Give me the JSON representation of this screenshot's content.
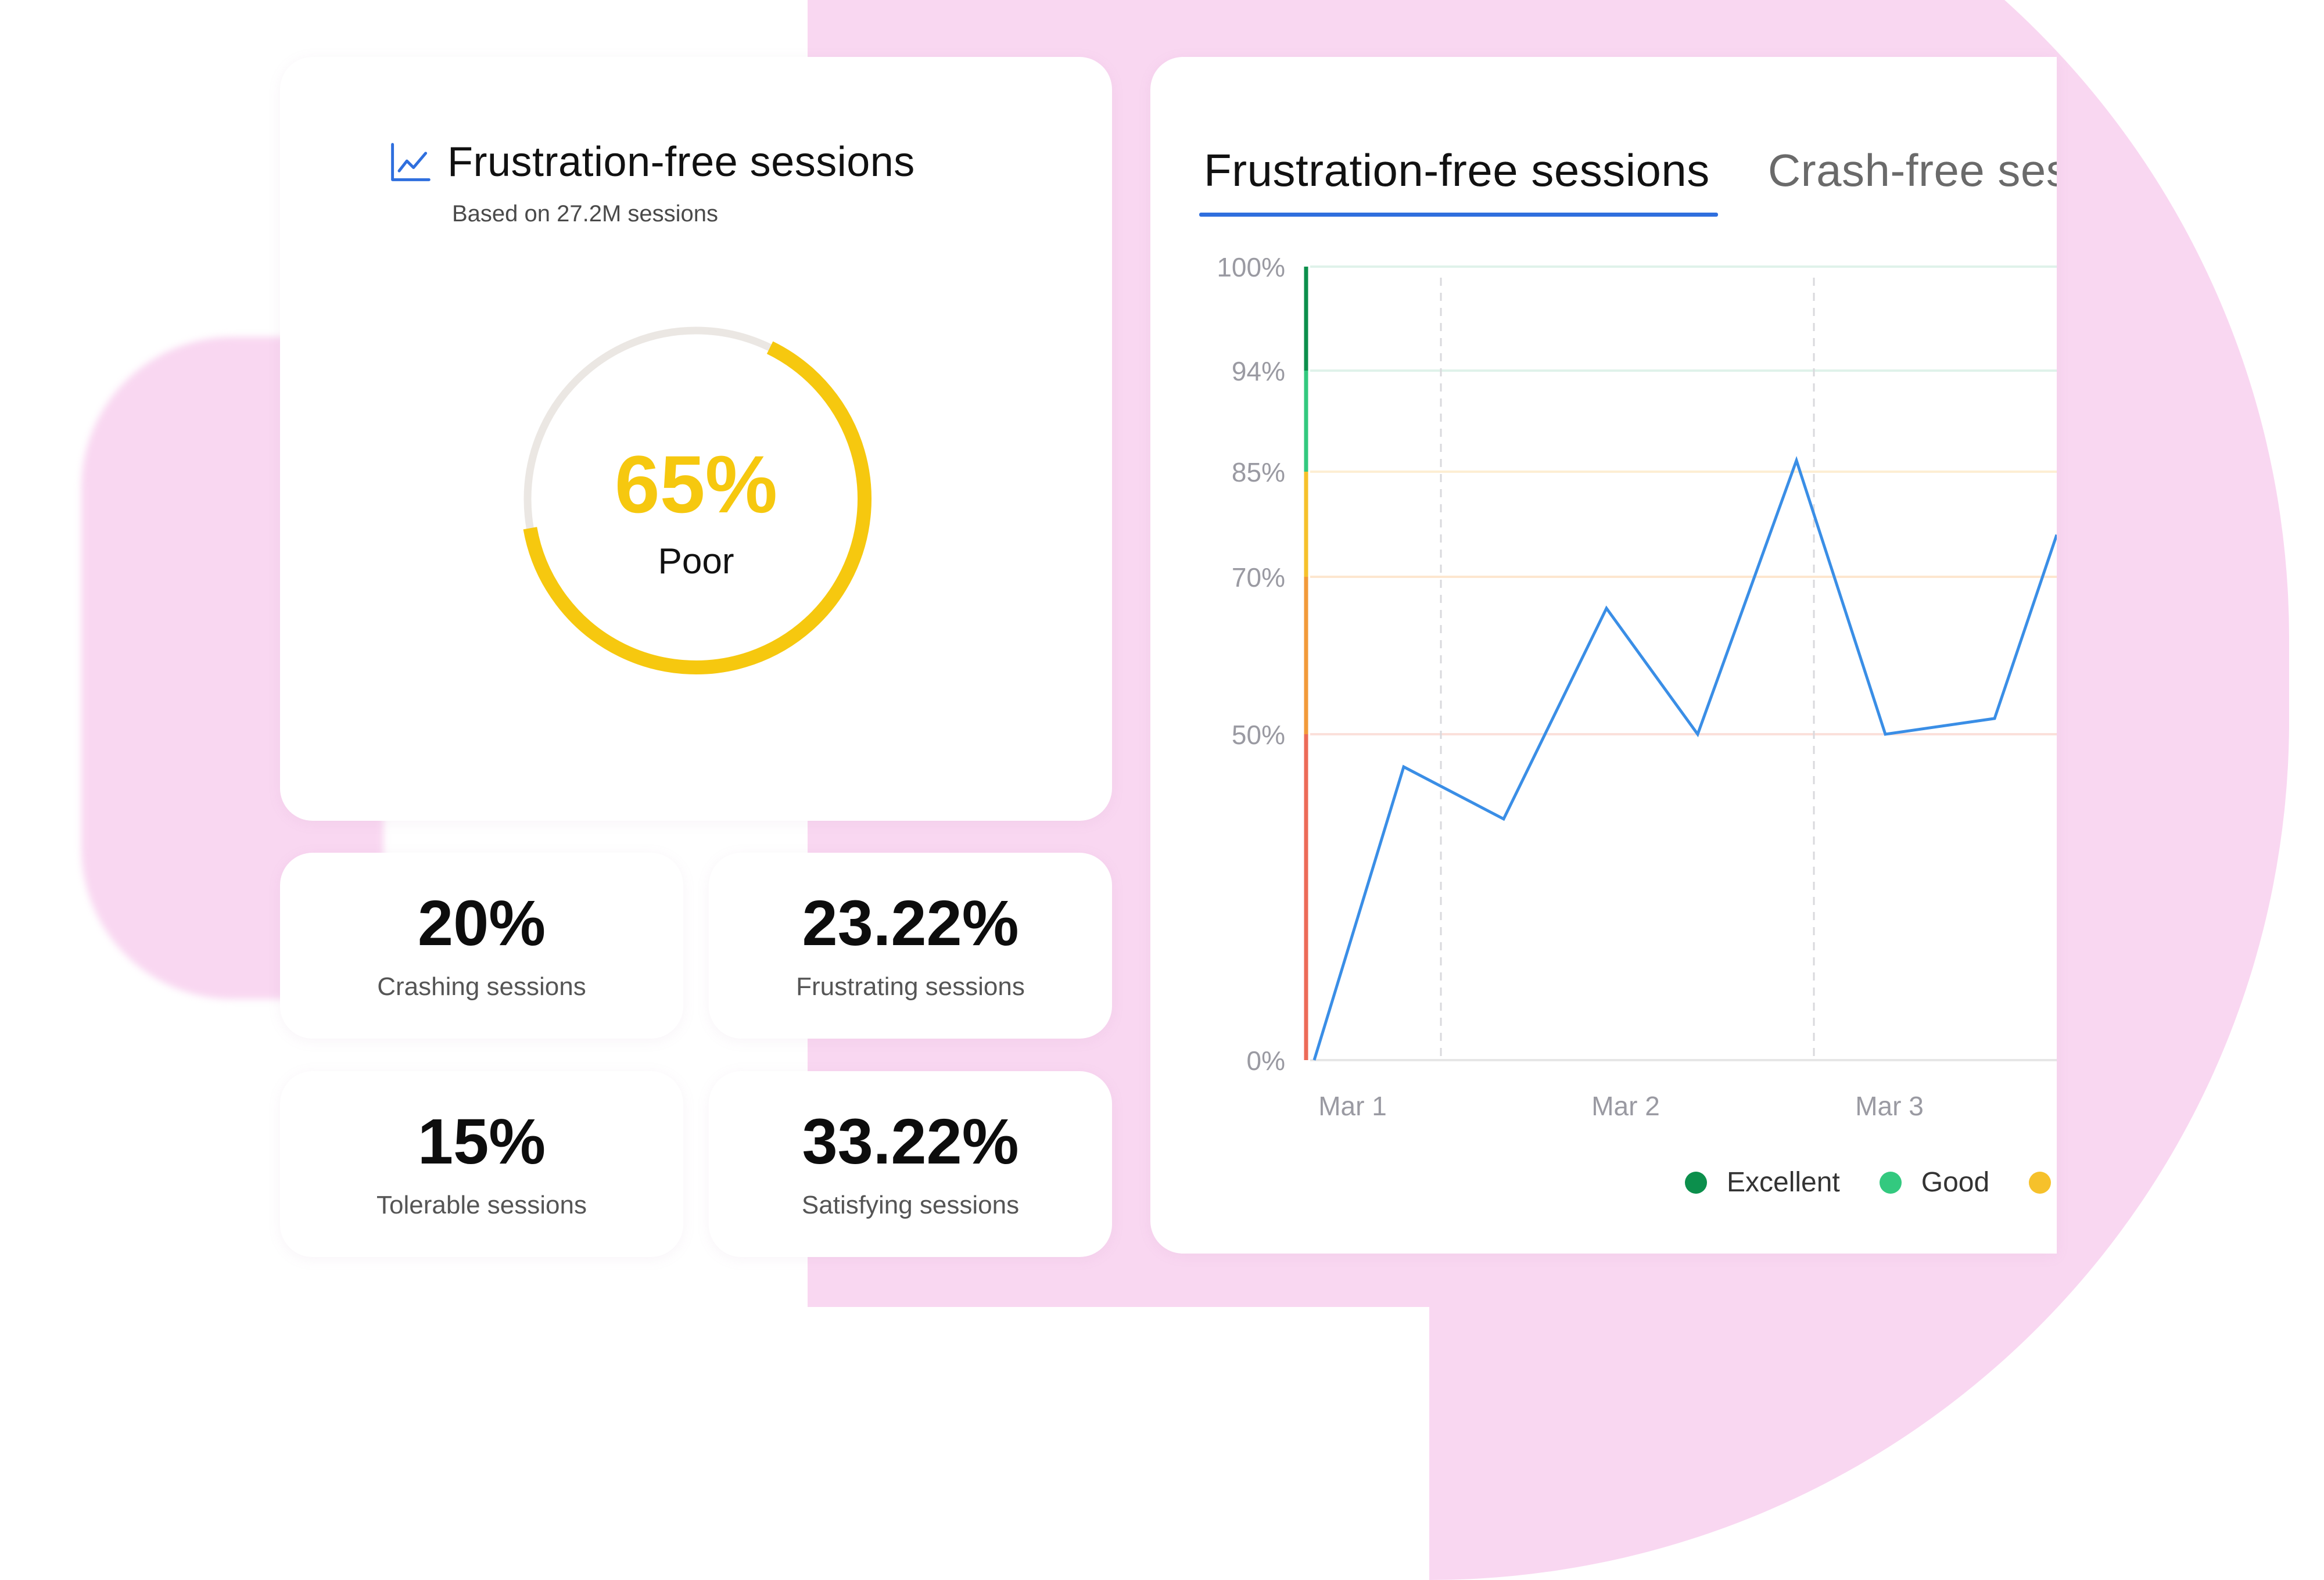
{
  "colors": {
    "accent_blue": "#2f6fde",
    "poor_yellow": "#f6c80f",
    "excellent": "#0c8f4c",
    "good": "#33c97f",
    "fair": "#f6c12b",
    "orange": "#f29a3a",
    "poor_red": "#ec6b58",
    "line": "#3a8ee6",
    "background_pink": "#f9d7f1"
  },
  "summary": {
    "icon": "line-chart-icon",
    "title": "Frustration-free sessions",
    "subtitle": "Based on 27.2M sessions",
    "score_value": "65%",
    "score_fraction": 0.65,
    "score_label": "Poor"
  },
  "stats": [
    {
      "value": "20%",
      "label": "Crashing sessions"
    },
    {
      "value": "23.22%",
      "label": "Frustrating sessions"
    },
    {
      "value": "15%",
      "label": "Tolerable sessions"
    },
    {
      "value": "33.22%",
      "label": "Satisfying sessions"
    }
  ],
  "chart": {
    "tabs": [
      {
        "label": "Frustration-free sessions",
        "active": true
      },
      {
        "label": "Crash-free ses",
        "active": false
      }
    ],
    "legend": [
      {
        "label": "Excellent",
        "color": "#0c8f4c"
      },
      {
        "label": "Good",
        "color": "#33c97f"
      },
      {
        "label": "",
        "color": "#f6c12b"
      }
    ]
  },
  "chart_data": {
    "type": "line",
    "y_ticks": [
      {
        "value": 0,
        "label": "0%"
      },
      {
        "value": 50,
        "label": "50%"
      },
      {
        "value": 70,
        "label": "70%"
      },
      {
        "value": 85,
        "label": "85%"
      },
      {
        "value": 94,
        "label": "94%"
      },
      {
        "value": 100,
        "label": "100%"
      }
    ],
    "x_ticks": [
      "Mar 1",
      "Mar 2",
      "Mar 3"
    ],
    "series": [
      {
        "values": [
          0,
          45,
          37,
          66,
          50,
          86,
          50,
          52,
          76
        ]
      }
    ],
    "bands": [
      {
        "from": 94,
        "to": 100,
        "color": "#0c8f4c"
      },
      {
        "from": 85,
        "to": 94,
        "color": "#33c97f"
      },
      {
        "from": 70,
        "to": 85,
        "color": "#f6c12b"
      },
      {
        "from": 50,
        "to": 70,
        "color": "#f29a3a"
      },
      {
        "from": 0,
        "to": 50,
        "color": "#ec6b58"
      }
    ],
    "grid": true,
    "ylim": [
      0,
      100
    ]
  }
}
